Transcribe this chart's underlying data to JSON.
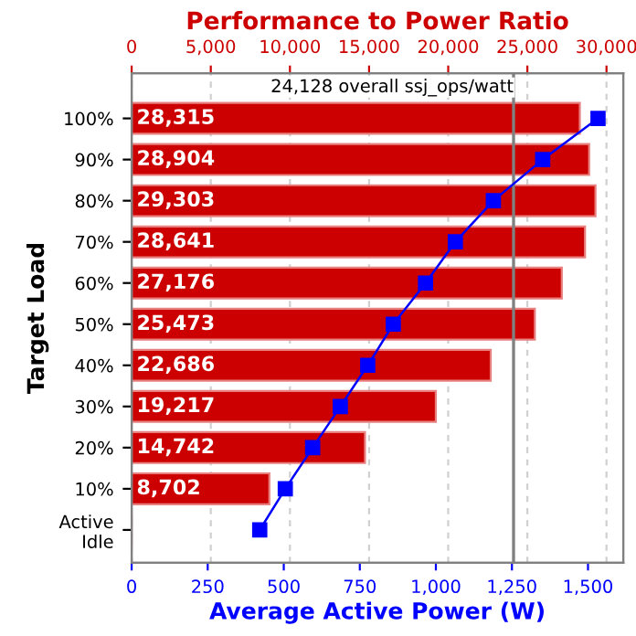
{
  "chart_data": {
    "type": "bar",
    "orientation": "horizontal",
    "x2label": "Performance to Power Ratio",
    "xlabel": "Average Active Power (W)",
    "ylabel": "Target Load",
    "categories": [
      "100%",
      "90%",
      "80%",
      "70%",
      "60%",
      "50%",
      "40%",
      "30%",
      "20%",
      "10%",
      "Active\nIdle"
    ],
    "series": [
      {
        "axis": "x2",
        "color": "#cc0000",
        "values": [
          28315,
          28904,
          29303,
          28641,
          27176,
          25473,
          22686,
          19217,
          14742,
          8702,
          null
        ],
        "value_labels": [
          "28,315",
          "28,904",
          "29,303",
          "28,641",
          "27,176",
          "25,473",
          "22,686",
          "19,217",
          "14,742",
          "8,702",
          null
        ]
      },
      {
        "type": "line",
        "color": "#0000ff",
        "marker": "square",
        "values": [
          1533,
          1351,
          1189,
          1064,
          966,
          860,
          776,
          686,
          595,
          505,
          421
        ]
      }
    ],
    "xlim": [
      0,
      1616
    ],
    "xticks": [
      0,
      250,
      500,
      750,
      {
        "value": 1000,
        "label": "1,000"
      },
      {
        "value": 1250,
        "label": "1,250"
      },
      {
        "value": 1500,
        "label": "1,500"
      }
    ],
    "x2lim": [
      0,
      31060
    ],
    "x2ticks": [
      0,
      {
        "value": 5000,
        "label": "5,000"
      },
      {
        "value": 10000,
        "label": "10,000"
      },
      {
        "value": 15000,
        "label": "15,000"
      },
      {
        "value": 20000,
        "label": "20,000"
      },
      {
        "value": 25000,
        "label": "25,000"
      },
      {
        "value": 30000,
        "label": "30,000"
      }
    ],
    "ref_lines": [
      {
        "axis": "x2",
        "value": 24128,
        "label": "24,128 overall ssj_ops/watt",
        "color": "#808080"
      }
    ],
    "grid": "x2"
  }
}
